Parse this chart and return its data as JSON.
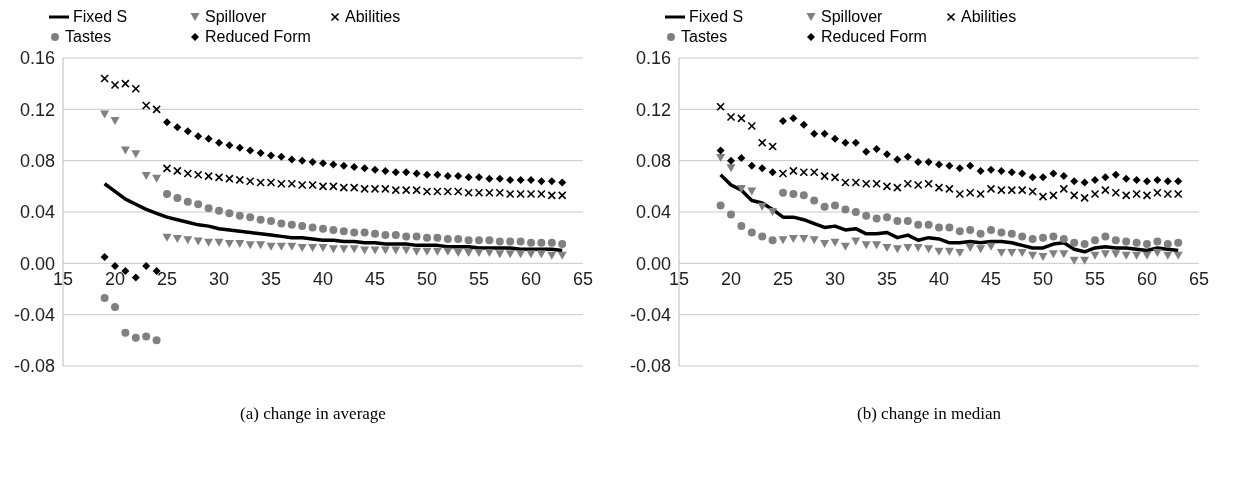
{
  "chart_data": [
    {
      "type": "scatter",
      "title": "(a)  change in average",
      "legend": "top",
      "grid": "y",
      "x": [
        19,
        20,
        21,
        22,
        23,
        24,
        25,
        26,
        27,
        28,
        29,
        30,
        31,
        32,
        33,
        34,
        35,
        36,
        37,
        38,
        39,
        40,
        41,
        42,
        43,
        44,
        45,
        46,
        47,
        48,
        49,
        50,
        51,
        52,
        53,
        54,
        55,
        56,
        57,
        58,
        59,
        60,
        61,
        62,
        63
      ],
      "xlim": [
        15,
        65
      ],
      "xticks": [
        15,
        20,
        25,
        30,
        35,
        40,
        45,
        50,
        55,
        60,
        65
      ],
      "ylim": [
        -0.08,
        0.16
      ],
      "yticks": [
        -0.08,
        -0.04,
        {
          "value": 0,
          "label": "0.00"
        },
        0.04,
        0.08,
        0.12,
        0.16
      ],
      "series": [
        {
          "name": "Fixed S",
          "type": "line",
          "color": "#000000",
          "values": [
            0.062,
            0.056,
            0.05,
            0.046,
            0.042,
            0.039,
            0.036,
            0.034,
            0.032,
            0.03,
            0.029,
            0.027,
            0.026,
            0.025,
            0.024,
            0.023,
            0.022,
            0.021,
            0.02,
            0.02,
            0.019,
            0.018,
            0.018,
            0.017,
            0.017,
            0.016,
            0.016,
            0.015,
            0.015,
            0.015,
            0.014,
            0.014,
            0.014,
            0.013,
            0.013,
            0.013,
            0.012,
            0.012,
            0.012,
            0.012,
            0.011,
            0.011,
            0.011,
            0.011,
            0.01
          ]
        },
        {
          "name": "Spillover",
          "marker": "triangle",
          "color": "#808080",
          "values": [
            0.116,
            0.111,
            0.088,
            0.085,
            0.068,
            0.066,
            0.02,
            0.019,
            0.018,
            0.017,
            0.016,
            0.016,
            0.015,
            0.015,
            0.014,
            0.014,
            0.013,
            0.013,
            0.013,
            0.012,
            0.012,
            0.012,
            0.011,
            0.011,
            0.011,
            0.01,
            0.01,
            0.01,
            0.01,
            0.01,
            0.009,
            0.009,
            0.009,
            0.009,
            0.008,
            0.008,
            0.008,
            0.008,
            0.007,
            0.007,
            0.007,
            0.007,
            0.007,
            0.006,
            0.006
          ]
        },
        {
          "name": "Abilities",
          "marker": "cross",
          "color": "#000000",
          "values": [
            0.144,
            0.139,
            0.14,
            0.136,
            0.123,
            0.12,
            0.074,
            0.072,
            0.07,
            0.069,
            0.068,
            0.067,
            0.066,
            0.065,
            0.064,
            0.063,
            0.063,
            0.062,
            0.062,
            0.061,
            0.061,
            0.06,
            0.06,
            0.059,
            0.059,
            0.058,
            0.058,
            0.058,
            0.057,
            0.057,
            0.057,
            0.056,
            0.056,
            0.056,
            0.056,
            0.055,
            0.055,
            0.055,
            0.055,
            0.054,
            0.054,
            0.054,
            0.054,
            0.053,
            0.053
          ]
        },
        {
          "name": "Tastes",
          "marker": "circle",
          "color": "#808080",
          "values": [
            -0.027,
            -0.034,
            -0.054,
            -0.058,
            -0.057,
            -0.06,
            0.054,
            0.051,
            0.048,
            0.046,
            0.043,
            0.041,
            0.039,
            0.037,
            0.036,
            0.034,
            0.033,
            0.031,
            0.03,
            0.029,
            0.028,
            0.027,
            0.026,
            0.025,
            0.024,
            0.024,
            0.023,
            0.022,
            0.022,
            0.021,
            0.021,
            0.02,
            0.02,
            0.019,
            0.019,
            0.018,
            0.018,
            0.018,
            0.017,
            0.017,
            0.017,
            0.016,
            0.016,
            0.016,
            0.015
          ]
        },
        {
          "name": "Reduced Form",
          "marker": "diamond",
          "color": "#000000",
          "values": [
            0.005,
            -0.002,
            -0.006,
            -0.011,
            -0.002,
            -0.006,
            0.11,
            0.106,
            0.103,
            0.099,
            0.097,
            0.094,
            0.092,
            0.09,
            0.088,
            0.086,
            0.084,
            0.083,
            0.081,
            0.08,
            0.079,
            0.078,
            0.077,
            0.076,
            0.075,
            0.074,
            0.073,
            0.072,
            0.071,
            0.071,
            0.07,
            0.069,
            0.069,
            0.068,
            0.068,
            0.067,
            0.067,
            0.066,
            0.066,
            0.065,
            0.065,
            0.065,
            0.064,
            0.064,
            0.063
          ]
        }
      ]
    },
    {
      "type": "scatter",
      "title": "(b)  change in median",
      "legend": "top",
      "grid": "y",
      "x": [
        19,
        20,
        21,
        22,
        23,
        24,
        25,
        26,
        27,
        28,
        29,
        30,
        31,
        32,
        33,
        34,
        35,
        36,
        37,
        38,
        39,
        40,
        41,
        42,
        43,
        44,
        45,
        46,
        47,
        48,
        49,
        50,
        51,
        52,
        53,
        54,
        55,
        56,
        57,
        58,
        59,
        60,
        61,
        62,
        63
      ],
      "xlim": [
        15,
        65
      ],
      "xticks": [
        15,
        20,
        25,
        30,
        35,
        40,
        45,
        50,
        55,
        60,
        65
      ],
      "ylim": [
        -0.08,
        0.16
      ],
      "yticks": [
        -0.08,
        -0.04,
        {
          "value": 0,
          "label": "0.00"
        },
        0.04,
        0.08,
        0.12,
        0.16
      ],
      "series": [
        {
          "name": "Fixed S",
          "type": "line",
          "color": "#000000",
          "values": [
            0.069,
            0.061,
            0.057,
            0.049,
            0.047,
            0.042,
            0.036,
            0.036,
            0.034,
            0.031,
            0.028,
            0.029,
            0.026,
            0.027,
            0.023,
            0.023,
            0.024,
            0.02,
            0.022,
            0.018,
            0.02,
            0.019,
            0.016,
            0.016,
            0.017,
            0.016,
            0.017,
            0.017,
            0.016,
            0.014,
            0.012,
            0.012,
            0.015,
            0.016,
            0.011,
            0.009,
            0.012,
            0.013,
            0.012,
            0.012,
            0.011,
            0.01,
            0.012,
            0.011,
            0.01
          ]
        },
        {
          "name": "Spillover",
          "marker": "triangle",
          "color": "#808080",
          "values": [
            0.082,
            0.074,
            0.058,
            0.056,
            0.044,
            0.04,
            0.018,
            0.019,
            0.019,
            0.018,
            0.015,
            0.016,
            0.013,
            0.017,
            0.014,
            0.014,
            0.012,
            0.011,
            0.012,
            0.012,
            0.011,
            0.009,
            0.009,
            0.008,
            0.012,
            0.011,
            0.013,
            0.008,
            0.008,
            0.008,
            0.006,
            0.005,
            0.007,
            0.007,
            0.002,
            0.002,
            0.006,
            0.007,
            0.007,
            0.006,
            0.006,
            0.006,
            0.008,
            0.006,
            0.006
          ]
        },
        {
          "name": "Abilities",
          "marker": "cross",
          "color": "#000000",
          "values": [
            0.122,
            0.114,
            0.113,
            0.107,
            0.094,
            0.091,
            0.07,
            0.072,
            0.071,
            0.071,
            0.068,
            0.067,
            0.063,
            0.063,
            0.062,
            0.062,
            0.06,
            0.059,
            0.062,
            0.061,
            0.062,
            0.059,
            0.058,
            0.054,
            0.055,
            0.054,
            0.058,
            0.057,
            0.057,
            0.057,
            0.056,
            0.052,
            0.053,
            0.058,
            0.053,
            0.051,
            0.054,
            0.057,
            0.055,
            0.053,
            0.054,
            0.053,
            0.055,
            0.054,
            0.054
          ]
        },
        {
          "name": "Tastes",
          "marker": "circle",
          "color": "#808080",
          "values": [
            0.045,
            0.038,
            0.029,
            0.024,
            0.021,
            0.018,
            0.055,
            0.054,
            0.053,
            0.049,
            0.044,
            0.045,
            0.042,
            0.04,
            0.037,
            0.035,
            0.036,
            0.033,
            0.033,
            0.03,
            0.03,
            0.028,
            0.028,
            0.025,
            0.026,
            0.023,
            0.026,
            0.024,
            0.023,
            0.021,
            0.019,
            0.02,
            0.021,
            0.019,
            0.016,
            0.015,
            0.018,
            0.021,
            0.018,
            0.017,
            0.016,
            0.015,
            0.017,
            0.015,
            0.016
          ]
        },
        {
          "name": "Reduced Form",
          "marker": "diamond",
          "color": "#000000",
          "values": [
            0.088,
            0.08,
            0.082,
            0.076,
            0.074,
            0.071,
            0.111,
            0.113,
            0.108,
            0.101,
            0.101,
            0.097,
            0.094,
            0.094,
            0.087,
            0.089,
            0.085,
            0.081,
            0.083,
            0.079,
            0.079,
            0.077,
            0.076,
            0.074,
            0.076,
            0.072,
            0.073,
            0.072,
            0.071,
            0.07,
            0.067,
            0.067,
            0.07,
            0.068,
            0.064,
            0.063,
            0.065,
            0.067,
            0.069,
            0.066,
            0.065,
            0.064,
            0.065,
            0.064,
            0.064
          ]
        }
      ]
    }
  ]
}
